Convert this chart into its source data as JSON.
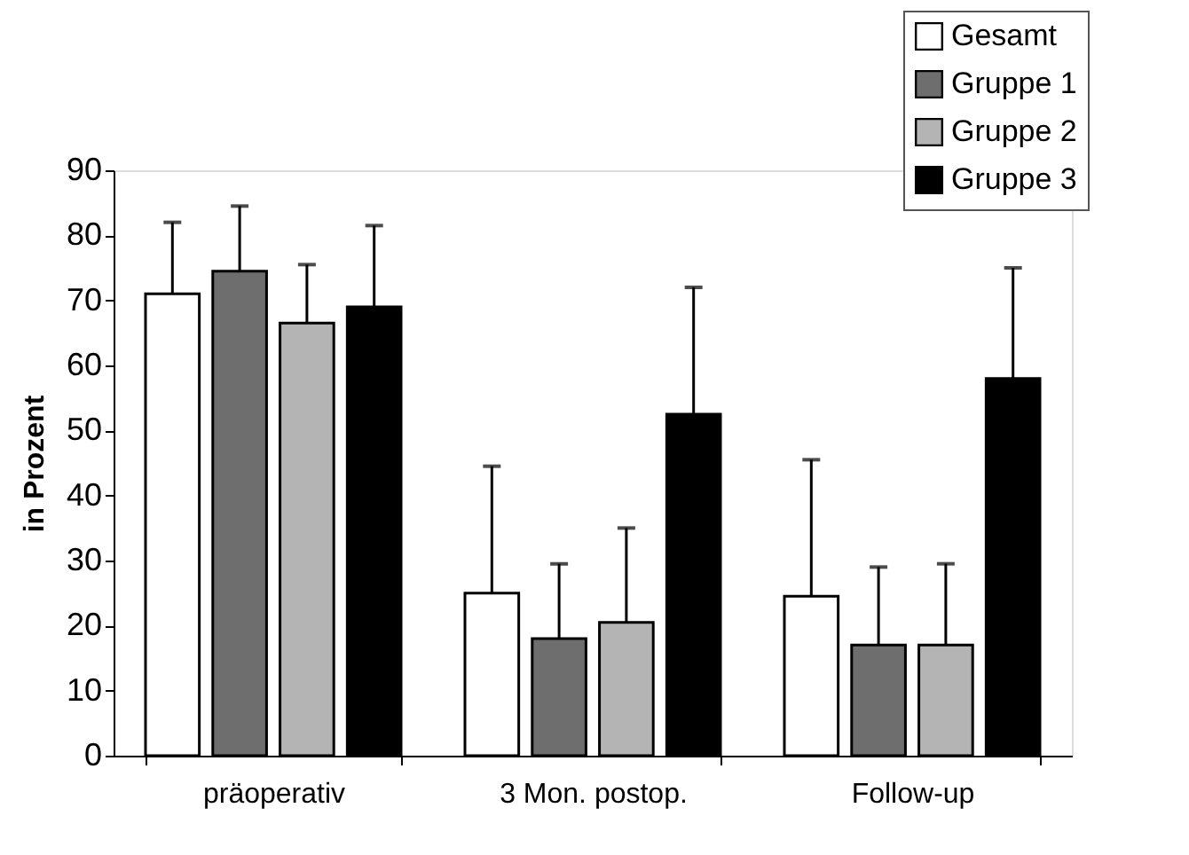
{
  "chart_data": {
    "type": "bar",
    "ylabel": "in Prozent",
    "categories": [
      "präoperativ",
      "3 Mon. postop.",
      "Follow-up"
    ],
    "series": [
      {
        "name": "Gesamt",
        "color": "#ffffff",
        "values": [
          71,
          25,
          24.5
        ],
        "errors": [
          [
            71,
            82
          ],
          [
            25,
            44.5
          ],
          [
            24.5,
            45.5
          ]
        ]
      },
      {
        "name": "Gruppe 1",
        "color": "#6e6e6e",
        "values": [
          74.5,
          18,
          17
        ],
        "errors": [
          [
            74.5,
            84.5
          ],
          [
            18,
            29.5
          ],
          [
            17,
            29
          ]
        ]
      },
      {
        "name": "Gruppe 2",
        "color": "#b4b4b4",
        "values": [
          66.5,
          20.5,
          17
        ],
        "errors": [
          [
            66.5,
            75.5
          ],
          [
            20.5,
            35
          ],
          [
            17,
            29.5
          ]
        ]
      },
      {
        "name": "Gruppe 3",
        "color": "#000000",
        "values": [
          69,
          52.5,
          58
        ],
        "errors": [
          [
            69,
            81.5
          ],
          [
            52.5,
            72
          ],
          [
            58,
            75
          ]
        ]
      }
    ],
    "ylim": [
      0,
      90
    ],
    "yticks": [
      0,
      10,
      20,
      30,
      40,
      50,
      60,
      70,
      80,
      90
    ],
    "grid": false,
    "legend": "top right"
  }
}
